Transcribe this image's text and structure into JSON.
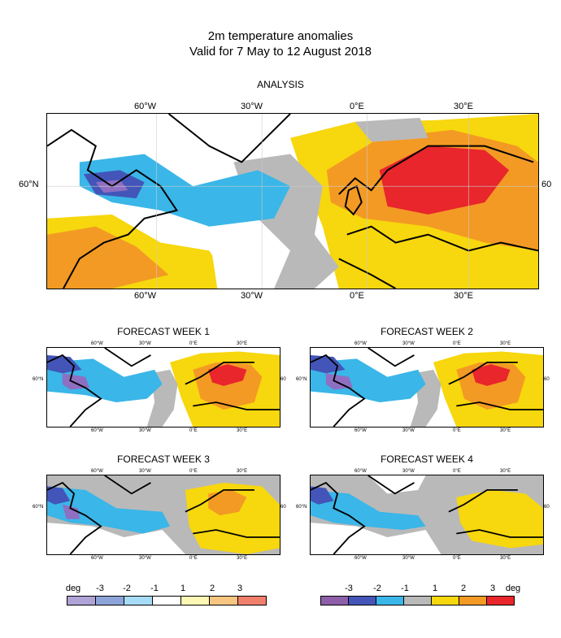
{
  "title_line1": "2m temperature anomalies",
  "title_line2": "Valid for 7 May to 12 August 2018",
  "panels": {
    "analysis": "ANALYSIS",
    "week1": "FORECAST WEEK 1",
    "week2": "FORECAST WEEK 2",
    "week3": "FORECAST WEEK 3",
    "week4": "FORECAST WEEK 4"
  },
  "axis": {
    "lon_60w": "60°W",
    "lon_30w": "30°W",
    "lon_0e": "0°E",
    "lon_30e": "30°E",
    "lat_60n": "60°N",
    "lat_60_right": "60"
  },
  "colors": {
    "cold3": "#8e6fc2",
    "cold2": "#4355b8",
    "cold1": "#3ab6e8",
    "neutral": "#b9b9b9",
    "warm1": "#f7d70d",
    "warm2": "#f39a24",
    "warm3": "#e8262b",
    "pale_cold3": "#b0a3d6",
    "pale_cold2": "#8ea4d8",
    "pale_cold1": "#a6dcf6",
    "pale_white": "#ffffff",
    "pale_warm1": "#fbf7b4",
    "pale_warm2": "#f7c681",
    "pale_warm3": "#f07f6b"
  },
  "legend_left": {
    "unit": "deg",
    "labels": [
      "-3",
      "-2",
      "-1",
      "1",
      "2",
      "3"
    ]
  },
  "legend_right": {
    "unit": "deg",
    "labels": [
      "-3",
      "-2",
      "-1",
      "1",
      "2",
      "3"
    ]
  }
}
